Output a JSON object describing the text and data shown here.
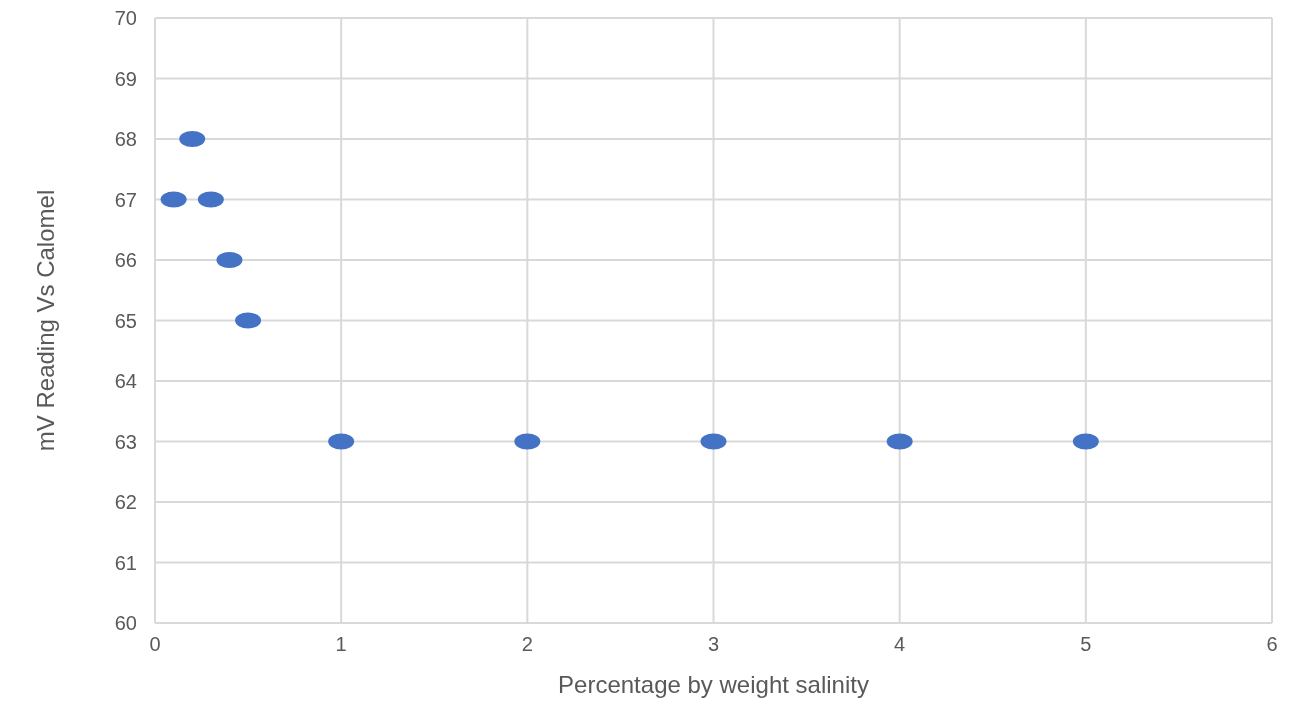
{
  "chart_data": {
    "type": "scatter",
    "xlabel": "Percentage by weight salinity",
    "ylabel": "mV Reading Vs Calomel",
    "x": [
      0.1,
      0.2,
      0.3,
      0.4,
      0.5,
      1,
      2,
      3,
      4,
      5
    ],
    "values": [
      67,
      68,
      67,
      66,
      65,
      63,
      63,
      63,
      63,
      63
    ],
    "color": "#4472c4",
    "xlim": [
      0,
      6
    ],
    "xticks": [
      0,
      1,
      2,
      3,
      4,
      5,
      6
    ],
    "ylim": [
      60,
      70
    ],
    "yticks": [
      60,
      61,
      62,
      63,
      64,
      65,
      66,
      67,
      68,
      69,
      70
    ],
    "grid": true,
    "marker": "circle"
  }
}
